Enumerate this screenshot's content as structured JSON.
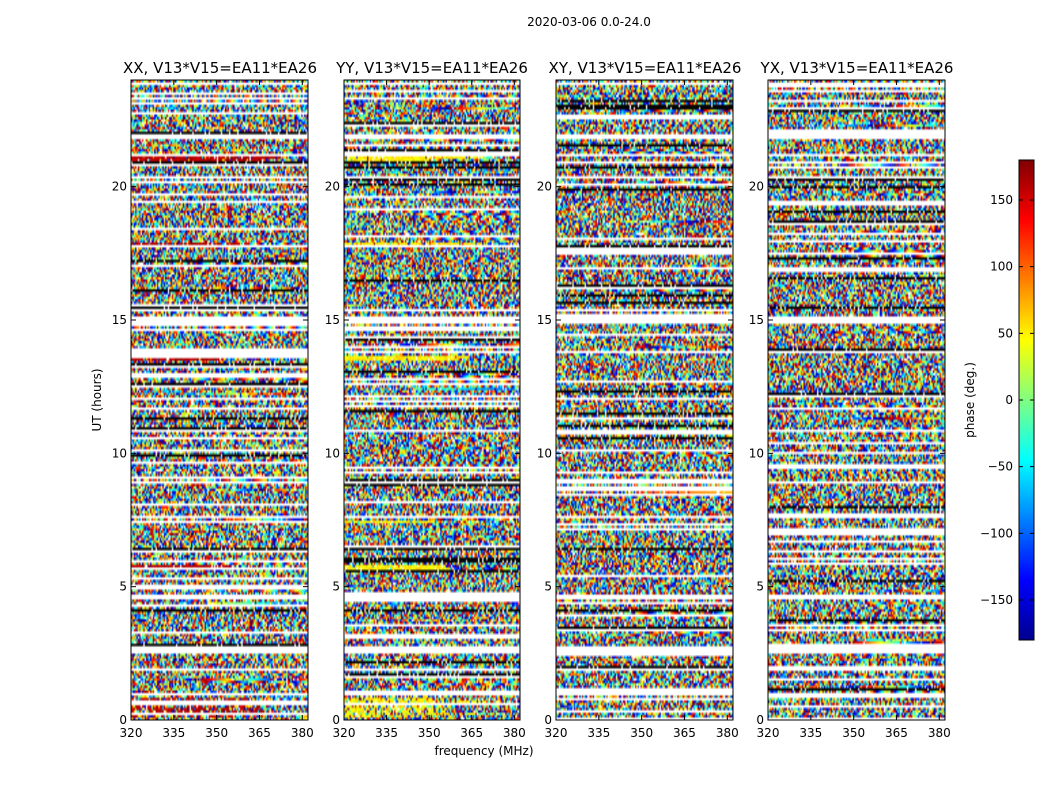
{
  "chart_data": {
    "type": "heatmap",
    "suptitle": "2020-03-06 0.0-24.0",
    "xlabel": "frequency (MHz)",
    "ylabel": "UT (hours)",
    "xlim": [
      320,
      382
    ],
    "ylim": [
      0,
      24
    ],
    "xticks": [
      320,
      335,
      350,
      365,
      380
    ],
    "yticks": [
      0,
      5,
      10,
      15,
      20
    ],
    "panels": [
      {
        "title": "XX, V13*V15=EA11*EA26",
        "bias_phase": 160
      },
      {
        "title": "YY, V13*V15=EA11*EA26",
        "bias_phase": 50
      },
      {
        "title": "XY, V13*V15=EA11*EA26",
        "bias_phase": null
      },
      {
        "title": "YX, V13*V15=EA11*EA26",
        "bias_phase": null
      }
    ],
    "colorbar": {
      "label": "phase (deg.)",
      "range": [
        -180,
        180
      ],
      "ticks": [
        150,
        100,
        50,
        0,
        -50,
        -100,
        -150
      ],
      "tick_labels": [
        "150",
        "100",
        "50",
        "0",
        "−50",
        "−100",
        "−150"
      ],
      "colormap": "jet"
    },
    "flagged_ut_bands": [
      [
        0.95,
        1.05
      ],
      [
        2.45,
        2.75
      ],
      [
        4.55,
        4.7
      ],
      [
        7.55,
        7.65
      ],
      [
        13.75,
        13.85
      ],
      [
        14.9,
        15.15
      ],
      [
        21.1,
        21.25
      ],
      [
        21.8,
        22.0
      ]
    ],
    "coherent_ut_bands": [
      {
        "ut": [
          0.1,
          0.85
        ],
        "strength": 0.55
      },
      {
        "ut": [
          5.6,
          5.85
        ],
        "strength": 0.95
      },
      {
        "ut": [
          7.35,
          7.5
        ],
        "strength": 0.9
      },
      {
        "ut": [
          13.5,
          13.7
        ],
        "strength": 0.95
      },
      {
        "ut": [
          17.75,
          17.9
        ],
        "strength": 0.8
      },
      {
        "ut": [
          20.95,
          21.1
        ],
        "strength": 0.9
      }
    ]
  }
}
